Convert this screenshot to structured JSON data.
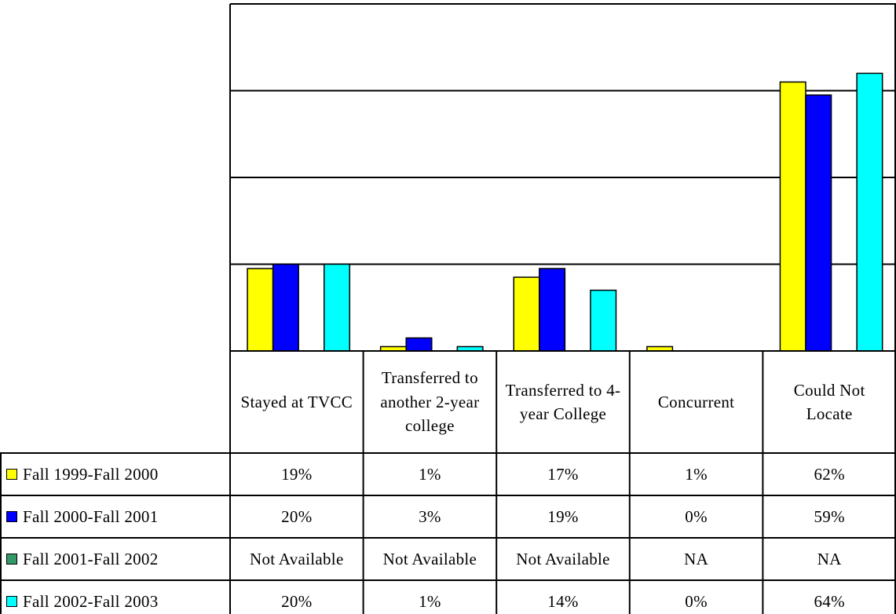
{
  "chart_data": {
    "type": "bar",
    "categories": [
      "Stayed at TVCC",
      "Transferred to another 2-year college",
      "Transferred to 4-year College",
      "Concurrent",
      "Could Not Locate"
    ],
    "series": [
      {
        "name": "Fall 1999-Fall 2000",
        "color": "#ffff00",
        "values": [
          19,
          1,
          17,
          1,
          62
        ],
        "value_labels": [
          "19%",
          "1%",
          "17%",
          "1%",
          "62%"
        ]
      },
      {
        "name": "Fall 2000-Fall 2001",
        "color": "#0000ff",
        "values": [
          20,
          3,
          19,
          0,
          59
        ],
        "value_labels": [
          "20%",
          "3%",
          "19%",
          "0%",
          "59%"
        ]
      },
      {
        "name": "Fall 2001-Fall 2002",
        "color": "#339966",
        "values": [
          null,
          null,
          null,
          null,
          null
        ],
        "value_labels": [
          "Not Available",
          "Not Available",
          "Not Available",
          "NA",
          "NA"
        ]
      },
      {
        "name": "Fall 2002-Fall 2003",
        "color": "#00ffff",
        "values": [
          20,
          1,
          14,
          0,
          64
        ],
        "value_labels": [
          "20%",
          "1%",
          "14%",
          "0%",
          "64%"
        ]
      }
    ],
    "ylim": [
      0,
      80
    ],
    "yticks": [
      0,
      20,
      40,
      60,
      80
    ],
    "grid": true
  }
}
